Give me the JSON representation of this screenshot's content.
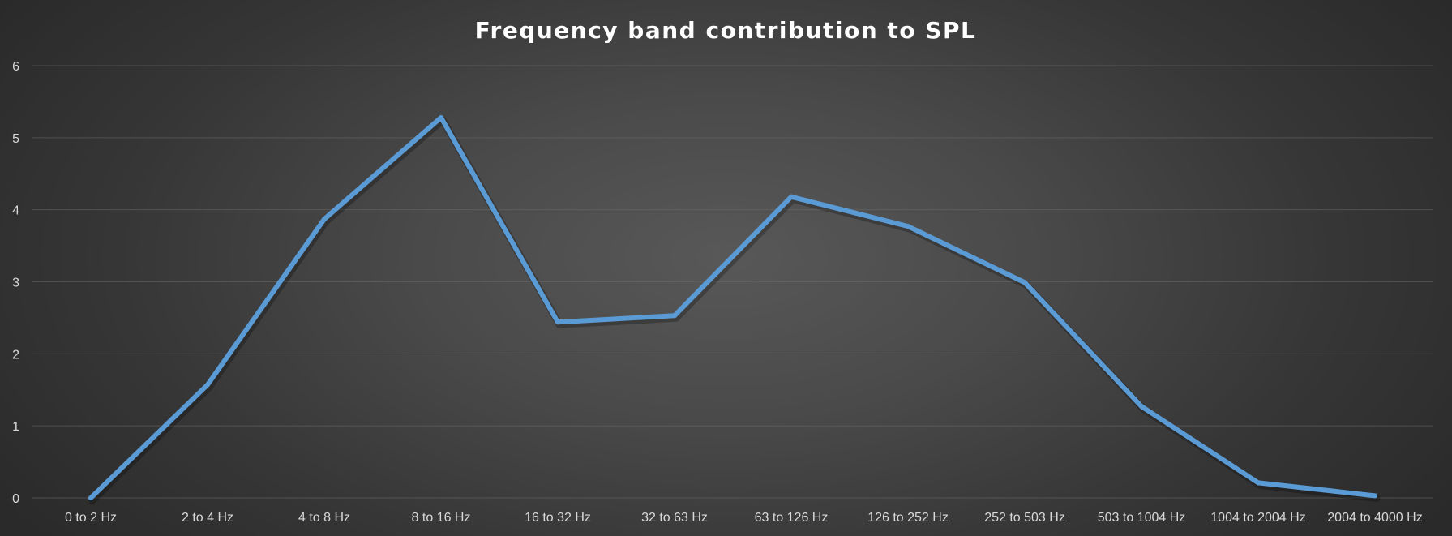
{
  "chart_data": {
    "type": "line",
    "title": "Frequency band contribution to SPL",
    "xlabel": "",
    "ylabel": "",
    "categories": [
      "0 to 2 Hz",
      "2 to 4 Hz",
      "4 to 8 Hz",
      "8 to 16 Hz",
      "16 to 32 Hz",
      "32 to 63 Hz",
      "63 to 126 Hz",
      "126 to 252 Hz",
      "252 to 503 Hz",
      "503 to 1004 Hz",
      "1004 to 2004 Hz",
      "2004 to 4000 Hz"
    ],
    "series": [
      {
        "values": [
          0.0,
          1.57,
          3.87,
          5.28,
          2.44,
          2.53,
          4.18,
          3.77,
          2.99,
          1.27,
          0.21,
          0.03
        ],
        "color": "#5b9bd5"
      }
    ],
    "ylim": [
      0,
      6
    ],
    "yticks": [
      0,
      1,
      2,
      3,
      4,
      5,
      6
    ],
    "grid": true,
    "legend": "none",
    "colors": {
      "background": "#404040",
      "title": "#ffffff",
      "tick_labels": "#d9d9d9",
      "gridlines": "#6a6a6a"
    }
  }
}
